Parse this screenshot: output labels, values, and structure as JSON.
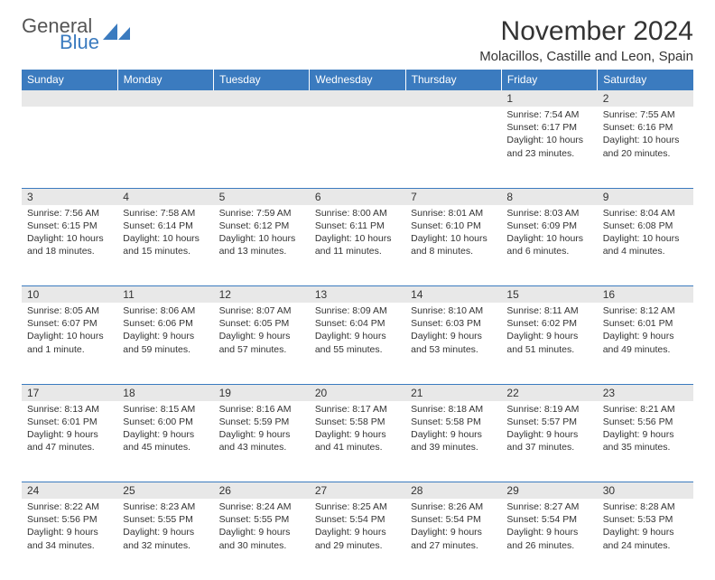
{
  "logo": {
    "top": "General",
    "bottom": "Blue"
  },
  "title": "November 2024",
  "location": "Molacillos, Castille and Leon, Spain",
  "colors": {
    "header_bg": "#3b7bbf",
    "header_text": "#ffffff",
    "daynum_bg": "#e8e8e8",
    "border": "#3b7bbf",
    "text": "#333333",
    "logo_gray": "#888888",
    "logo_blue": "#3b7bbf"
  },
  "day_headers": [
    "Sunday",
    "Monday",
    "Tuesday",
    "Wednesday",
    "Thursday",
    "Friday",
    "Saturday"
  ],
  "weeks": [
    [
      null,
      null,
      null,
      null,
      null,
      {
        "n": "1",
        "sr": "7:54 AM",
        "ss": "6:17 PM",
        "dl": "10 hours and 23 minutes."
      },
      {
        "n": "2",
        "sr": "7:55 AM",
        "ss": "6:16 PM",
        "dl": "10 hours and 20 minutes."
      }
    ],
    [
      {
        "n": "3",
        "sr": "7:56 AM",
        "ss": "6:15 PM",
        "dl": "10 hours and 18 minutes."
      },
      {
        "n": "4",
        "sr": "7:58 AM",
        "ss": "6:14 PM",
        "dl": "10 hours and 15 minutes."
      },
      {
        "n": "5",
        "sr": "7:59 AM",
        "ss": "6:12 PM",
        "dl": "10 hours and 13 minutes."
      },
      {
        "n": "6",
        "sr": "8:00 AM",
        "ss": "6:11 PM",
        "dl": "10 hours and 11 minutes."
      },
      {
        "n": "7",
        "sr": "8:01 AM",
        "ss": "6:10 PM",
        "dl": "10 hours and 8 minutes."
      },
      {
        "n": "8",
        "sr": "8:03 AM",
        "ss": "6:09 PM",
        "dl": "10 hours and 6 minutes."
      },
      {
        "n": "9",
        "sr": "8:04 AM",
        "ss": "6:08 PM",
        "dl": "10 hours and 4 minutes."
      }
    ],
    [
      {
        "n": "10",
        "sr": "8:05 AM",
        "ss": "6:07 PM",
        "dl": "10 hours and 1 minute."
      },
      {
        "n": "11",
        "sr": "8:06 AM",
        "ss": "6:06 PM",
        "dl": "9 hours and 59 minutes."
      },
      {
        "n": "12",
        "sr": "8:07 AM",
        "ss": "6:05 PM",
        "dl": "9 hours and 57 minutes."
      },
      {
        "n": "13",
        "sr": "8:09 AM",
        "ss": "6:04 PM",
        "dl": "9 hours and 55 minutes."
      },
      {
        "n": "14",
        "sr": "8:10 AM",
        "ss": "6:03 PM",
        "dl": "9 hours and 53 minutes."
      },
      {
        "n": "15",
        "sr": "8:11 AM",
        "ss": "6:02 PM",
        "dl": "9 hours and 51 minutes."
      },
      {
        "n": "16",
        "sr": "8:12 AM",
        "ss": "6:01 PM",
        "dl": "9 hours and 49 minutes."
      }
    ],
    [
      {
        "n": "17",
        "sr": "8:13 AM",
        "ss": "6:01 PM",
        "dl": "9 hours and 47 minutes."
      },
      {
        "n": "18",
        "sr": "8:15 AM",
        "ss": "6:00 PM",
        "dl": "9 hours and 45 minutes."
      },
      {
        "n": "19",
        "sr": "8:16 AM",
        "ss": "5:59 PM",
        "dl": "9 hours and 43 minutes."
      },
      {
        "n": "20",
        "sr": "8:17 AM",
        "ss": "5:58 PM",
        "dl": "9 hours and 41 minutes."
      },
      {
        "n": "21",
        "sr": "8:18 AM",
        "ss": "5:58 PM",
        "dl": "9 hours and 39 minutes."
      },
      {
        "n": "22",
        "sr": "8:19 AM",
        "ss": "5:57 PM",
        "dl": "9 hours and 37 minutes."
      },
      {
        "n": "23",
        "sr": "8:21 AM",
        "ss": "5:56 PM",
        "dl": "9 hours and 35 minutes."
      }
    ],
    [
      {
        "n": "24",
        "sr": "8:22 AM",
        "ss": "5:56 PM",
        "dl": "9 hours and 34 minutes."
      },
      {
        "n": "25",
        "sr": "8:23 AM",
        "ss": "5:55 PM",
        "dl": "9 hours and 32 minutes."
      },
      {
        "n": "26",
        "sr": "8:24 AM",
        "ss": "5:55 PM",
        "dl": "9 hours and 30 minutes."
      },
      {
        "n": "27",
        "sr": "8:25 AM",
        "ss": "5:54 PM",
        "dl": "9 hours and 29 minutes."
      },
      {
        "n": "28",
        "sr": "8:26 AM",
        "ss": "5:54 PM",
        "dl": "9 hours and 27 minutes."
      },
      {
        "n": "29",
        "sr": "8:27 AM",
        "ss": "5:54 PM",
        "dl": "9 hours and 26 minutes."
      },
      {
        "n": "30",
        "sr": "8:28 AM",
        "ss": "5:53 PM",
        "dl": "9 hours and 24 minutes."
      }
    ]
  ],
  "labels": {
    "sunrise": "Sunrise:",
    "sunset": "Sunset:",
    "daylight": "Daylight:"
  }
}
